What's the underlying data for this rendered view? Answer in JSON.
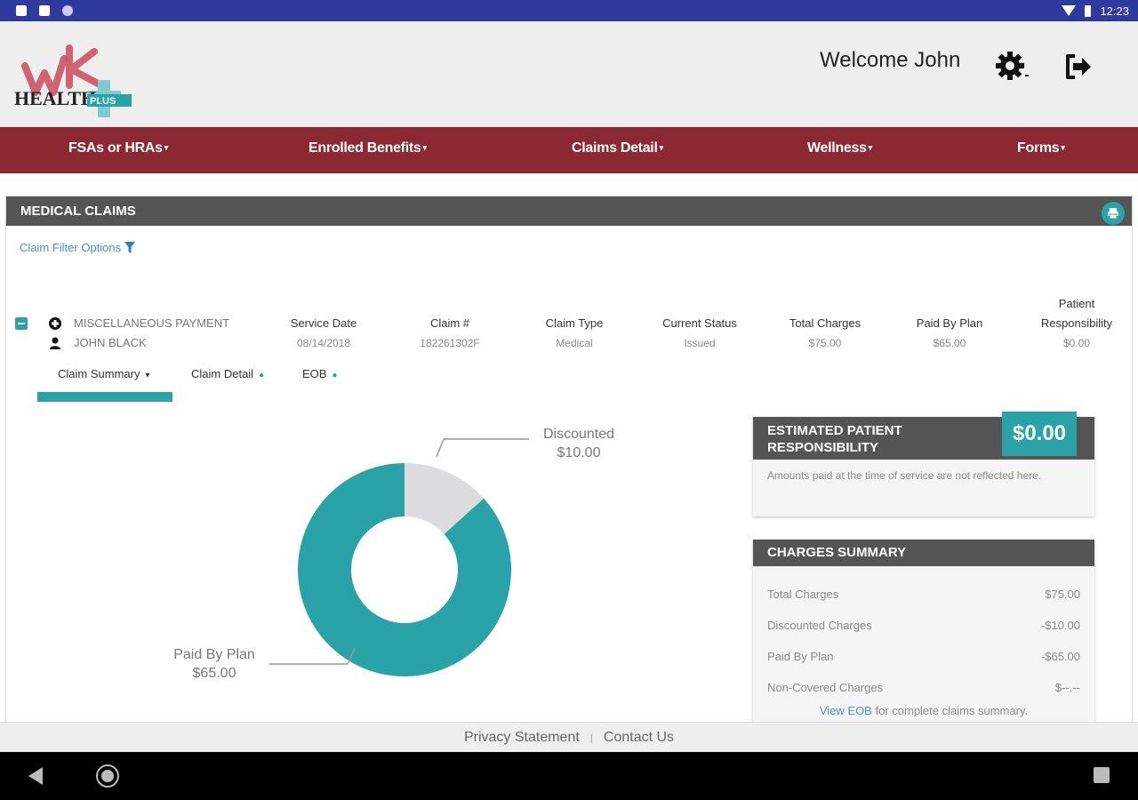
{
  "status_bar": {
    "time": "12:23"
  },
  "header": {
    "logo_text_health": "HEALTH",
    "logo_text_plus": "PLUS",
    "welcome": "Welcome John"
  },
  "nav": {
    "items": [
      {
        "label": "FSAs or HRAs"
      },
      {
        "label": "Enrolled Benefits"
      },
      {
        "label": "Claims Detail"
      },
      {
        "label": "Wellness"
      },
      {
        "label": "Forms"
      }
    ]
  },
  "panel": {
    "title": "MEDICAL CLAIMS",
    "filter_label": "Claim Filter Options"
  },
  "claim": {
    "type_name": "MISCELLANEOUS PAYMENT",
    "patient": "JOHN BLACK",
    "columns": [
      {
        "header": "Service Date",
        "value": "08/14/2018"
      },
      {
        "header": "Claim #",
        "value": "182261302F"
      },
      {
        "header": "Claim Type",
        "value": "Medical"
      },
      {
        "header": "Current Status",
        "value": "Issued"
      },
      {
        "header": "Total Charges",
        "value": "$75.00"
      },
      {
        "header": "Paid By Plan",
        "value": "$65.00"
      },
      {
        "header": "Patient Responsibility",
        "value": "$0.00"
      }
    ]
  },
  "tabs": [
    {
      "label": "Claim Summary",
      "active": true
    },
    {
      "label": "Claim Detail",
      "active": false
    },
    {
      "label": "EOB",
      "active": false
    }
  ],
  "chart_data": {
    "type": "pie",
    "donut": true,
    "slices": [
      {
        "label": "Paid By Plan",
        "display_value": "$65.00",
        "value": 65,
        "color": "#2aa3a8"
      },
      {
        "label": "Discounted",
        "display_value": "$10.00",
        "value": 10,
        "color": "#dcdcde"
      }
    ]
  },
  "estimated": {
    "title_line1": "ESTIMATED PATIENT",
    "title_line2": "RESPONSIBILITY",
    "amount": "$0.00",
    "note": "Amounts paid at the time of service are not reflected here."
  },
  "charges_summary": {
    "title": "CHARGES SUMMARY",
    "rows": [
      {
        "label": "Total Charges",
        "value": "$75.00"
      },
      {
        "label": "Discounted Charges",
        "value": "-$10.00"
      },
      {
        "label": "Paid By Plan",
        "value": "-$65.00"
      },
      {
        "label": "Non-Covered Charges",
        "value": "$--.--"
      }
    ],
    "eob_link": "View EOB",
    "eob_text": " for complete claims summary."
  },
  "footer": {
    "privacy": "Privacy Statement",
    "separator": "|",
    "contact": "Contact Us"
  },
  "colors": {
    "accent": "#2aa3a8",
    "nav_bg": "#8b2832",
    "header_dark": "#555555",
    "status_bar": "#2f3a9e"
  }
}
